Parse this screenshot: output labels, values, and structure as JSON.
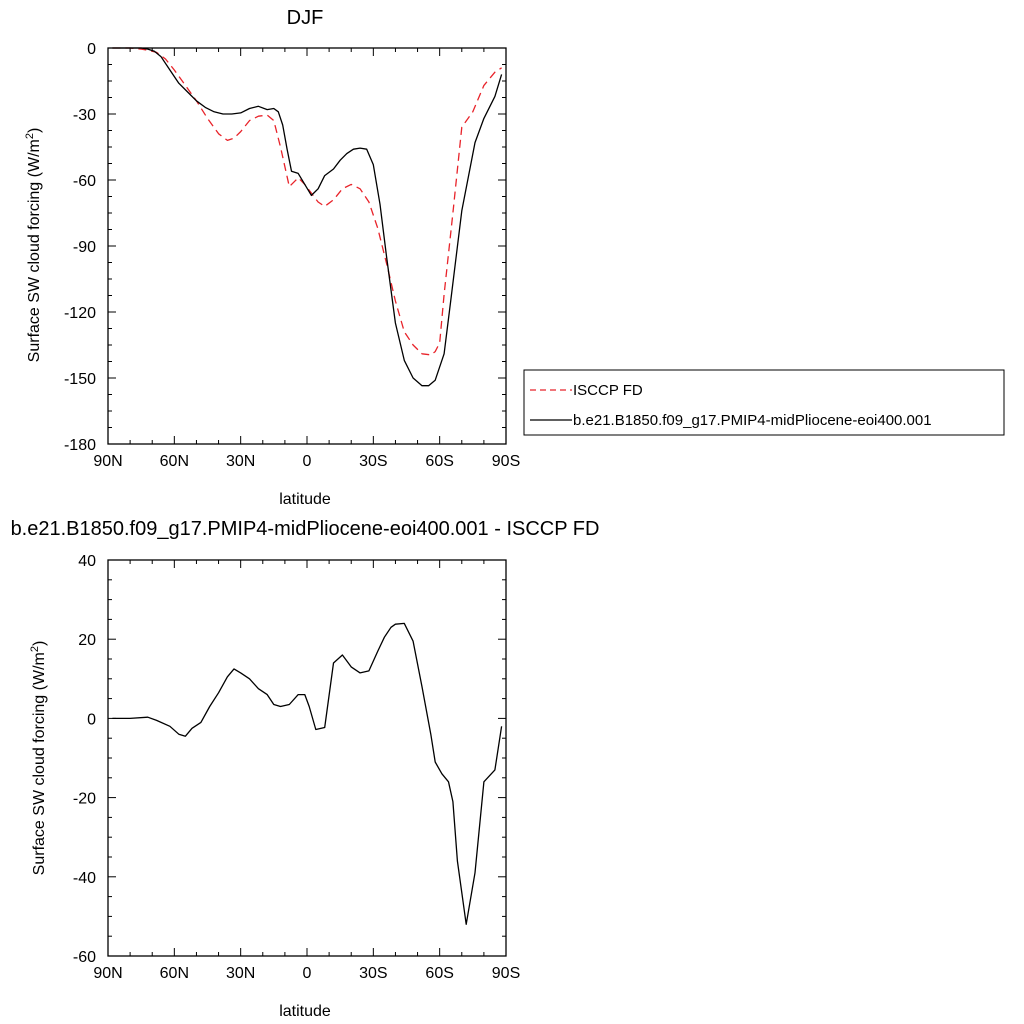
{
  "chart_data": [
    {
      "type": "line",
      "title": "DJF",
      "xlabel": "latitude",
      "ylabel_main": "Surface SW cloud forcing (W/m",
      "ylabel_sup": "2",
      "ylabel_tail": ")",
      "xlim": [
        90,
        -90
      ],
      "ylim": [
        -180,
        0
      ],
      "xticks": [
        {
          "value": 90,
          "label": "90N"
        },
        {
          "value": 60,
          "label": "60N"
        },
        {
          "value": 30,
          "label": "30N"
        },
        {
          "value": 0,
          "label": "0"
        },
        {
          "value": -30,
          "label": "30S"
        },
        {
          "value": -60,
          "label": "60S"
        },
        {
          "value": -90,
          "label": "90S"
        }
      ],
      "yticks": [
        0,
        -30,
        -60,
        -90,
        -120,
        -150,
        -180
      ],
      "legend": {
        "placement": "right",
        "entries": [
          "ISCCP FD",
          "b.e21.B1850.f09_g17.PMIP4-midPliocene-eoi400.001"
        ]
      },
      "series": [
        {
          "name": "ISCCP FD",
          "color": "#e8232a",
          "dash": "dashed",
          "x": [
            88,
            85,
            80,
            75,
            72,
            68,
            64,
            60,
            55,
            50,
            45,
            40,
            36,
            33,
            30,
            26,
            22,
            18,
            15,
            12,
            8,
            4,
            1,
            -2,
            -5,
            -8,
            -12,
            -16,
            -20,
            -24,
            -28,
            -32,
            -36,
            -40,
            -44,
            -48,
            -52,
            -56,
            -58,
            -60,
            -62,
            -66,
            -70,
            -75,
            -80,
            -85,
            -88
          ],
          "y": [
            0,
            0,
            0,
            -0.5,
            -1,
            -2,
            -5,
            -10,
            -17,
            -24,
            -32,
            -39,
            -42,
            -41,
            -38,
            -33,
            -31,
            -30.5,
            -33,
            -45,
            -63,
            -59,
            -62,
            -66,
            -70,
            -72,
            -69,
            -64,
            -62,
            -64,
            -70,
            -82,
            -98,
            -115,
            -129,
            -135,
            -139,
            -139.5,
            -138,
            -134,
            -112,
            -75,
            -36,
            -29,
            -17,
            -11,
            -9
          ]
        },
        {
          "name": "b.e21.B1850.f09_g17.PMIP4-midPliocene-eoi400.001",
          "color": "#000000",
          "dash": "solid",
          "x": [
            88,
            85,
            80,
            75,
            72,
            69,
            66,
            62,
            58,
            54,
            50,
            46,
            42,
            38,
            34,
            30,
            26,
            22,
            18,
            15,
            13,
            11,
            9,
            7,
            4,
            1,
            -2,
            -5,
            -8,
            -12,
            -15,
            -18,
            -21,
            -24,
            -27,
            -30,
            -33,
            -36,
            -40,
            -44,
            -48,
            -52,
            -55,
            -58,
            -62,
            -65,
            -70,
            -76,
            -80,
            -85,
            -88
          ],
          "y": [
            0,
            0,
            0,
            0,
            -0.5,
            -1.5,
            -4,
            -10,
            -16,
            -20,
            -24,
            -27,
            -29,
            -30,
            -30,
            -29.5,
            -27.5,
            -26.5,
            -28,
            -27.5,
            -29,
            -35,
            -46,
            -56,
            -57,
            -62,
            -67,
            -64,
            -58,
            -55,
            -51,
            -48,
            -46,
            -45.5,
            -46,
            -53,
            -71,
            -95,
            -125,
            -142,
            -150,
            -153.5,
            -153.5,
            -151,
            -139,
            -115,
            -74,
            -43,
            -32,
            -22,
            -12
          ]
        }
      ]
    },
    {
      "type": "line",
      "title": "b.e21.B1850.f09_g17.PMIP4-midPliocene-eoi400.001 - ISCCP FD",
      "xlabel": "latitude",
      "ylabel_main": "Surface SW cloud forcing (W/m",
      "ylabel_sup": "2",
      "ylabel_tail": ")",
      "xlim": [
        90,
        -90
      ],
      "ylim": [
        -60,
        40
      ],
      "xticks": [
        {
          "value": 90,
          "label": "90N"
        },
        {
          "value": 60,
          "label": "60N"
        },
        {
          "value": 30,
          "label": "30N"
        },
        {
          "value": 0,
          "label": "0"
        },
        {
          "value": -30,
          "label": "30S"
        },
        {
          "value": -60,
          "label": "60S"
        },
        {
          "value": -90,
          "label": "90S"
        }
      ],
      "yticks": [
        40,
        20,
        0,
        -20,
        -40,
        -60
      ],
      "series": [
        {
          "color": "#000000",
          "dash": "solid",
          "x": [
            88,
            80,
            72,
            68,
            62,
            58,
            55,
            52,
            48,
            44,
            40,
            36,
            33,
            30,
            26,
            22,
            18,
            15,
            12,
            8,
            4,
            1,
            -1,
            -4,
            -8,
            -12,
            -16,
            -20,
            -24,
            -28,
            -32,
            -35,
            -38,
            -40,
            -44,
            -48,
            -52,
            -56,
            -58,
            -61,
            -64,
            -66,
            -68,
            -72,
            -76,
            -80,
            -85,
            -88
          ],
          "y": [
            0,
            0,
            0.3,
            -0.5,
            -2,
            -4,
            -4.5,
            -2.5,
            -1,
            3,
            6.5,
            10.5,
            12.5,
            11.5,
            10,
            7.5,
            6,
            3.5,
            3,
            3.5,
            6,
            6,
            3,
            -2.8,
            -2.3,
            14,
            16,
            13,
            11.5,
            12,
            17,
            20.5,
            23,
            23.8,
            24,
            19.5,
            8,
            -4,
            -11,
            -14,
            -16,
            -21,
            -36,
            -52,
            -39,
            -16,
            -13,
            -2
          ]
        }
      ]
    }
  ]
}
